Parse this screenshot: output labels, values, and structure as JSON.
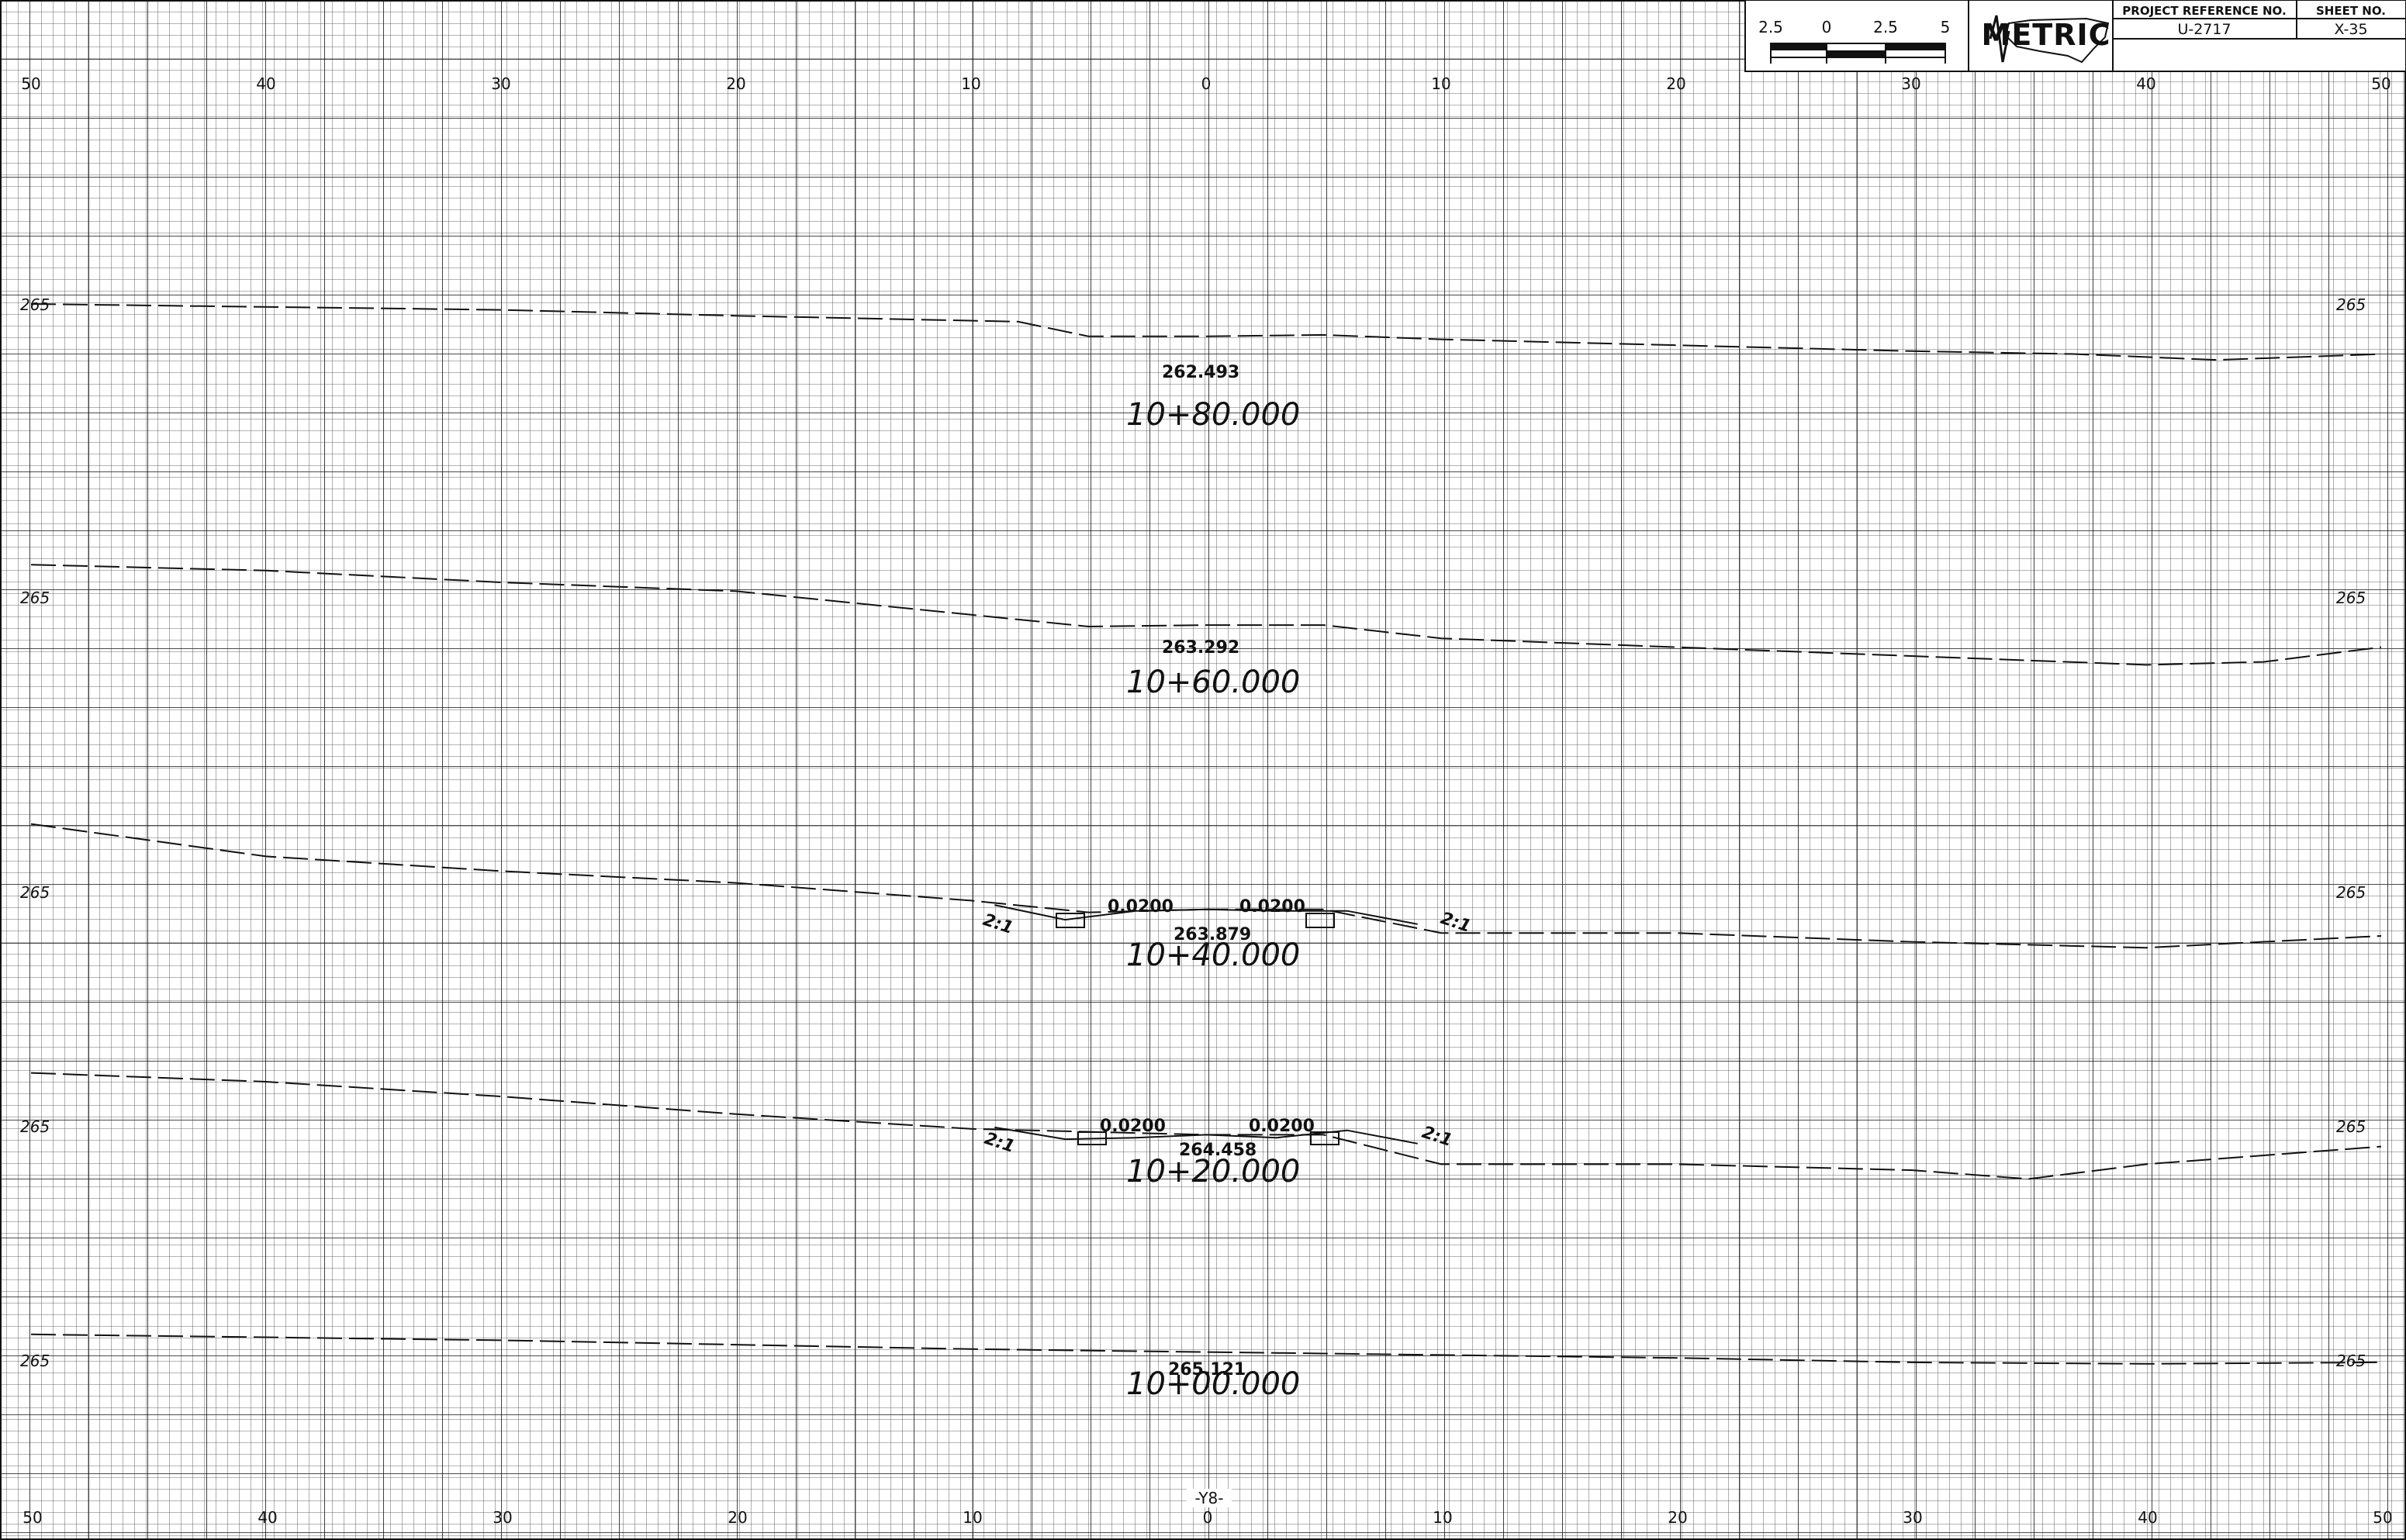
{
  "title_block": {
    "scale_bar": {
      "labels": [
        "2.5",
        "0",
        "2.5",
        "5"
      ]
    },
    "logo_text": "METRIC",
    "project_reference_label": "PROJECT REFERENCE NO.",
    "project_reference_value": "U-2717",
    "sheet_no_label": "SHEET NO.",
    "sheet_no_value": "X-35"
  },
  "axis": {
    "top_labels": [
      "50",
      "40",
      "30",
      "20",
      "10",
      "0",
      "10",
      "20",
      "30",
      "40",
      "50"
    ],
    "bottom_labels": [
      "50",
      "40",
      "30",
      "20",
      "10",
      "0",
      "10",
      "20",
      "30",
      "40",
      "50"
    ],
    "offset_values": [
      -50,
      -40,
      -30,
      -20,
      -10,
      0,
      10,
      20,
      30,
      40,
      50
    ],
    "alignment_label": "-Y8-"
  },
  "sections": [
    {
      "station": "10+80.000",
      "grade_elevation": "262.493",
      "left_elevation_label": "265",
      "right_elevation_label": "265",
      "slope_labels": [],
      "ground_profile": [
        [
          -50,
          265.0
        ],
        [
          -30,
          264.8
        ],
        [
          -20,
          264.6
        ],
        [
          -8,
          264.4
        ],
        [
          -5,
          263.9
        ],
        [
          0,
          263.9
        ],
        [
          5,
          263.95
        ],
        [
          10,
          263.8
        ],
        [
          20,
          263.6
        ],
        [
          30,
          263.4
        ],
        [
          37,
          263.3
        ],
        [
          43,
          263.1
        ],
        [
          50,
          263.3
        ]
      ]
    },
    {
      "station": "10+60.000",
      "grade_elevation": "263.292",
      "left_elevation_label": "265",
      "right_elevation_label": "265",
      "slope_labels": [],
      "ground_profile": [
        [
          -50,
          266.1
        ],
        [
          -40,
          265.9
        ],
        [
          -30,
          265.5
        ],
        [
          -20,
          265.2
        ],
        [
          -10,
          264.4
        ],
        [
          -5,
          264.0
        ],
        [
          0,
          264.05
        ],
        [
          5,
          264.05
        ],
        [
          10,
          263.6
        ],
        [
          20,
          263.3
        ],
        [
          30,
          263.0
        ],
        [
          40,
          262.7
        ],
        [
          45,
          262.8
        ],
        [
          50,
          263.3
        ]
      ]
    },
    {
      "station": "10+40.000",
      "grade_elevation": "263.879",
      "left_elevation_label": "265",
      "right_elevation_label": "265",
      "slope_labels": [
        "2:1",
        "2:1"
      ],
      "cross_slopes": [
        "0.0200",
        "0.0200"
      ],
      "ground_profile": [
        [
          -50,
          267.3
        ],
        [
          -40,
          266.2
        ],
        [
          -30,
          265.7
        ],
        [
          -20,
          265.3
        ],
        [
          -10,
          264.7
        ],
        [
          -5,
          264.3
        ],
        [
          0,
          264.4
        ],
        [
          5,
          264.4
        ],
        [
          10,
          263.6
        ],
        [
          20,
          263.6
        ],
        [
          30,
          263.3
        ],
        [
          40,
          263.1
        ],
        [
          50,
          263.5
        ]
      ],
      "design_template": [
        [
          -9,
          264.55
        ],
        [
          -6,
          264.05
        ],
        [
          -3,
          264.35
        ],
        [
          0,
          264.4
        ],
        [
          3,
          264.35
        ],
        [
          6,
          264.35
        ],
        [
          9,
          263.9
        ]
      ]
    },
    {
      "station": "10+20.000",
      "grade_elevation": "264.458",
      "left_elevation_label": "265",
      "right_elevation_label": "265",
      "slope_labels": [
        "2:1",
        "2:1"
      ],
      "cross_slopes": [
        "0.0200",
        "0.0200"
      ],
      "ground_profile": [
        [
          -50,
          266.8
        ],
        [
          -40,
          266.5
        ],
        [
          -30,
          266.0
        ],
        [
          -20,
          265.4
        ],
        [
          -10,
          264.9
        ],
        [
          0,
          264.7
        ],
        [
          5,
          264.7
        ],
        [
          10,
          263.7
        ],
        [
          20,
          263.7
        ],
        [
          30,
          263.5
        ],
        [
          35,
          263.2
        ],
        [
          40,
          263.7
        ],
        [
          50,
          264.3
        ]
      ],
      "design_template": [
        [
          -9,
          264.95
        ],
        [
          -6,
          264.55
        ],
        [
          -3,
          264.6
        ],
        [
          0,
          264.7
        ],
        [
          3,
          264.6
        ],
        [
          6,
          264.85
        ],
        [
          9,
          264.4
        ]
      ]
    },
    {
      "station": "10+00.000",
      "grade_elevation": "265.121",
      "left_elevation_label": "265",
      "right_elevation_label": "265",
      "slope_labels": [],
      "ground_profile": [
        [
          -50,
          265.9
        ],
        [
          -30,
          265.7
        ],
        [
          -10,
          265.4
        ],
        [
          0,
          265.3
        ],
        [
          10,
          265.2
        ],
        [
          20,
          265.1
        ],
        [
          30,
          264.95
        ],
        [
          40,
          264.9
        ],
        [
          50,
          264.95
        ]
      ]
    }
  ]
}
